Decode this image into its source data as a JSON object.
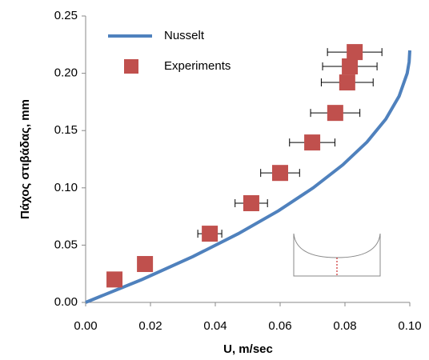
{
  "chart_data": {
    "type": "scatter-line",
    "x_label": "U, m/sec",
    "y_label": "Πάχος στιβάδας, mm",
    "xlim": [
      0,
      0.1
    ],
    "ylim": [
      0,
      0.25
    ],
    "xticks": [
      {
        "value": 0,
        "label": "0.00"
      },
      {
        "value": 0.02,
        "label": "0.02"
      },
      {
        "value": 0.04,
        "label": "0.04"
      },
      {
        "value": 0.06,
        "label": "0.06"
      },
      {
        "value": 0.08,
        "label": "0.08"
      },
      {
        "value": 0.1,
        "label": "0.10"
      }
    ],
    "yticks": [
      {
        "value": 0,
        "label": "0.00"
      },
      {
        "value": 0.05,
        "label": "0.05"
      },
      {
        "value": 0.1,
        "label": "0.10"
      },
      {
        "value": 0.15,
        "label": "0.15"
      },
      {
        "value": 0.2,
        "label": "0.20"
      },
      {
        "value": 0.25,
        "label": "0.25"
      }
    ],
    "legend": "upper left",
    "series": [
      {
        "name": "Nusselt",
        "kind": "line",
        "color": "#4f81bd",
        "x": [
          0,
          0.0174,
          0.0331,
          0.0471,
          0.0595,
          0.0702,
          0.0793,
          0.0868,
          0.0926,
          0.0967,
          0.0992,
          0.0998,
          0.1
        ],
        "values": [
          0,
          0.02,
          0.04,
          0.06,
          0.08,
          0.1,
          0.12,
          0.14,
          0.16,
          0.18,
          0.2,
          0.21,
          0.22
        ]
      },
      {
        "name": "Experiments",
        "kind": "points",
        "color": "#c0504d",
        "x": [
          0.0089,
          0.0183,
          0.0383,
          0.0511,
          0.06,
          0.0699,
          0.077,
          0.0807,
          0.0815,
          0.083
        ],
        "values": [
          0.02,
          0.0335,
          0.06,
          0.0866,
          0.113,
          0.1396,
          0.1654,
          0.192,
          0.206,
          0.2185
        ],
        "xerr": [
          null,
          null,
          0.0037,
          0.005,
          0.006,
          0.007,
          0.0076,
          0.008,
          0.0084,
          0.0084
        ]
      }
    ]
  }
}
